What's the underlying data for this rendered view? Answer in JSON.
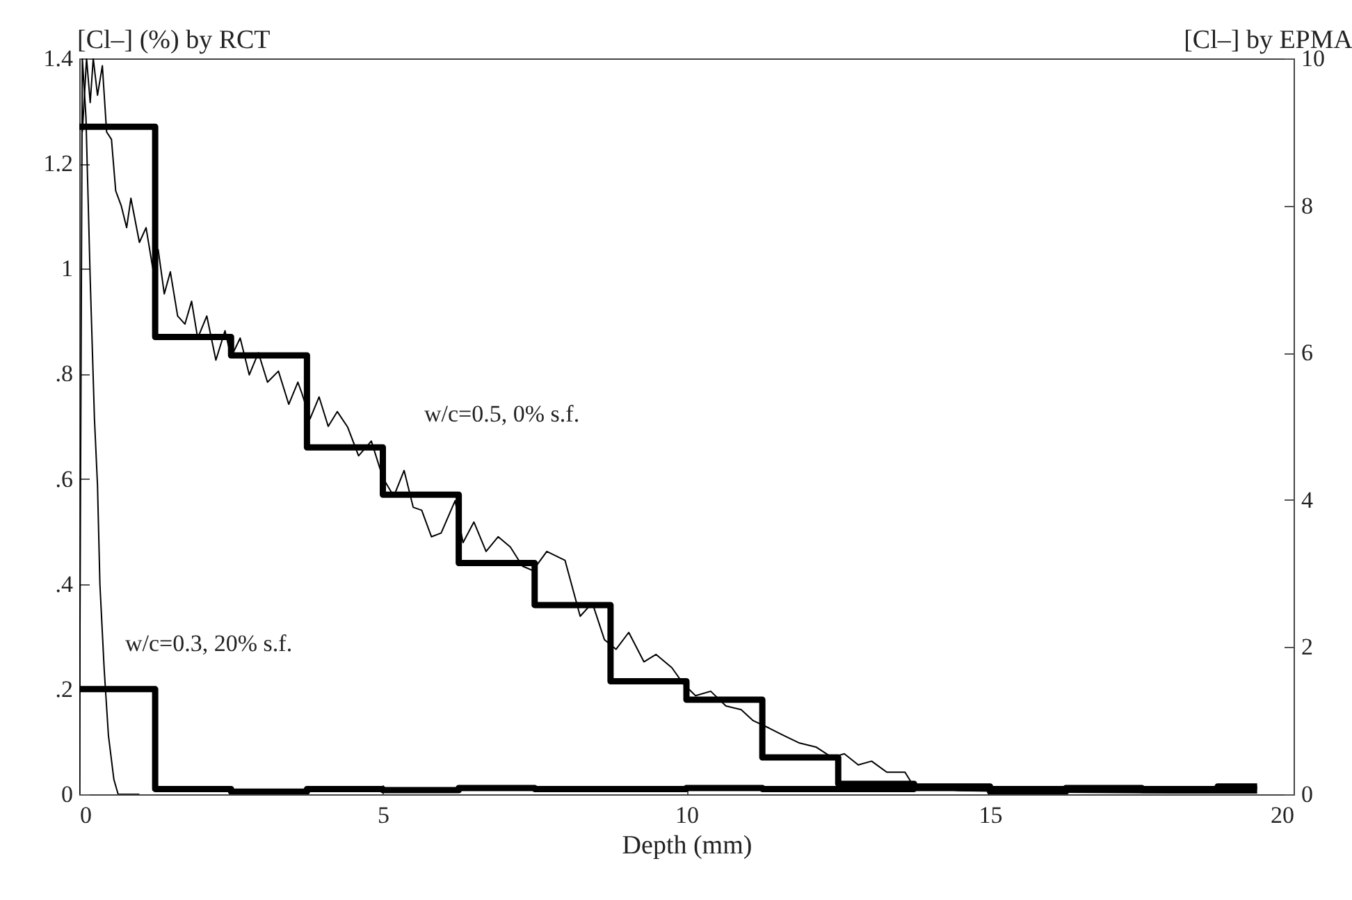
{
  "chart_data": {
    "type": "step",
    "xlabel": "Depth (mm)",
    "ylabel": "[Cl–] (%) by RCT",
    "y2label": "[Cl–] by EPMA",
    "xlim": [
      0,
      20
    ],
    "xticks": [
      0,
      5,
      10,
      15,
      20
    ],
    "ylim": [
      0,
      1.4
    ],
    "yticks": [
      0,
      {
        "value": 0.2,
        "label": ".2"
      },
      {
        "value": 0.4,
        "label": ".4"
      },
      {
        "value": 0.6,
        "label": ".6"
      },
      {
        "value": 0.8,
        "label": ".8"
      },
      1,
      1.2,
      1.4
    ],
    "y2lim": [
      0,
      10
    ],
    "y2ticks": [
      0,
      2,
      4,
      6,
      8,
      10
    ],
    "grid": false,
    "legend": false,
    "marker": "none",
    "line_style": "solid",
    "annotations": [
      "w/c=0.5, 0% s.f.",
      "w/c=0.3, 20% s.f."
    ],
    "series": [
      {
        "type": "line",
        "axis": "y2",
        "color": "#000000",
        "x": [
          0.05,
          0.12,
          0.18,
          0.23,
          0.3,
          0.38,
          0.45,
          0.53,
          0.6,
          0.69,
          0.78,
          0.85,
          0.99,
          1.1,
          1.21,
          1.3,
          1.4,
          1.5,
          1.62,
          1.74,
          1.85,
          1.95,
          2.1,
          2.25,
          2.4,
          2.5,
          2.65,
          2.8,
          2.95,
          3.1,
          3.28,
          3.45,
          3.6,
          3.67,
          3.8,
          3.95,
          4.1,
          4.25,
          4.42,
          4.6,
          4.81,
          5.0,
          5.18,
          5.35,
          5.5,
          5.64,
          5.8,
          5.96,
          6.19,
          6.32,
          6.5,
          6.7,
          6.9,
          7.1,
          7.3,
          7.47,
          7.7,
          8.0,
          8.25,
          8.45,
          8.65,
          8.84,
          9.05,
          9.3,
          9.5,
          9.76,
          9.95,
          10.15,
          10.4,
          10.65,
          10.9,
          11.1,
          11.36,
          11.6,
          11.85,
          12.14,
          12.4,
          12.6,
          12.83,
          13.05,
          13.3,
          13.6,
          13.75,
          14.5,
          16,
          18,
          19.4
        ],
        "values": [
          9.0,
          10.0,
          9.4,
          10.0,
          9.5,
          9.9,
          9.0,
          8.9,
          8.2,
          8.0,
          7.7,
          8.1,
          7.5,
          7.7,
          7.15,
          7.4,
          6.8,
          7.1,
          6.5,
          6.39,
          6.7,
          6.2,
          6.5,
          5.9,
          6.3,
          5.94,
          6.2,
          5.7,
          6.0,
          5.6,
          5.75,
          5.3,
          5.6,
          5.44,
          5.1,
          5.4,
          5.0,
          5.2,
          4.99,
          4.6,
          4.8,
          4.3,
          4.05,
          4.4,
          3.9,
          3.86,
          3.5,
          3.55,
          3.99,
          3.42,
          3.7,
          3.3,
          3.5,
          3.36,
          3.1,
          3.04,
          3.3,
          3.18,
          2.42,
          2.6,
          2.1,
          1.97,
          2.2,
          1.8,
          1.9,
          1.72,
          1.5,
          1.34,
          1.4,
          1.2,
          1.15,
          1.0,
          0.9,
          0.8,
          0.7,
          0.64,
          0.5,
          0.55,
          0.4,
          0.45,
          0.3,
          0.3,
          0.1,
          0.05,
          0.03,
          0.02,
          0.02
        ]
      },
      {
        "type": "line",
        "axis": "y2",
        "color": "#000000",
        "x": [
          0,
          0.05,
          0.11,
          0.18,
          0.25,
          0.3,
          0.34,
          0.41,
          0.48,
          0.57,
          0.64,
          0.99
        ],
        "values": [
          0,
          10,
          9.2,
          7.0,
          5.1,
          4.2,
          2.85,
          1.7,
          0.8,
          0.2,
          0,
          0
        ]
      },
      {
        "color": "#000000",
        "x": [
          0,
          1.25,
          2.5,
          3.75,
          5,
          6.25,
          7.5,
          8.75,
          10,
          11.25,
          12.5,
          13.75,
          15,
          16.25,
          17.5,
          18.75,
          19.4
        ],
        "values": [
          1.27,
          0.87,
          0.835,
          0.66,
          0.57,
          0.44,
          0.36,
          0.215,
          0.18,
          0.07,
          0.02,
          0.015,
          0.01,
          0.01,
          0.01,
          0.015,
          0.015
        ]
      },
      {
        "color": "#000000",
        "x": [
          0,
          1.25,
          2.5,
          3.75,
          5,
          6.25,
          7.5,
          8.75,
          10,
          11.25,
          12.5,
          13.75,
          15,
          16.25,
          17.5,
          18.75,
          19.4
        ],
        "values": [
          0.2,
          0.01,
          0.005,
          0.01,
          0.008,
          0.012,
          0.01,
          0.01,
          0.012,
          0.01,
          0.01,
          0.012,
          0.005,
          0.012,
          0.008,
          0.01,
          0.01
        ]
      }
    ]
  }
}
